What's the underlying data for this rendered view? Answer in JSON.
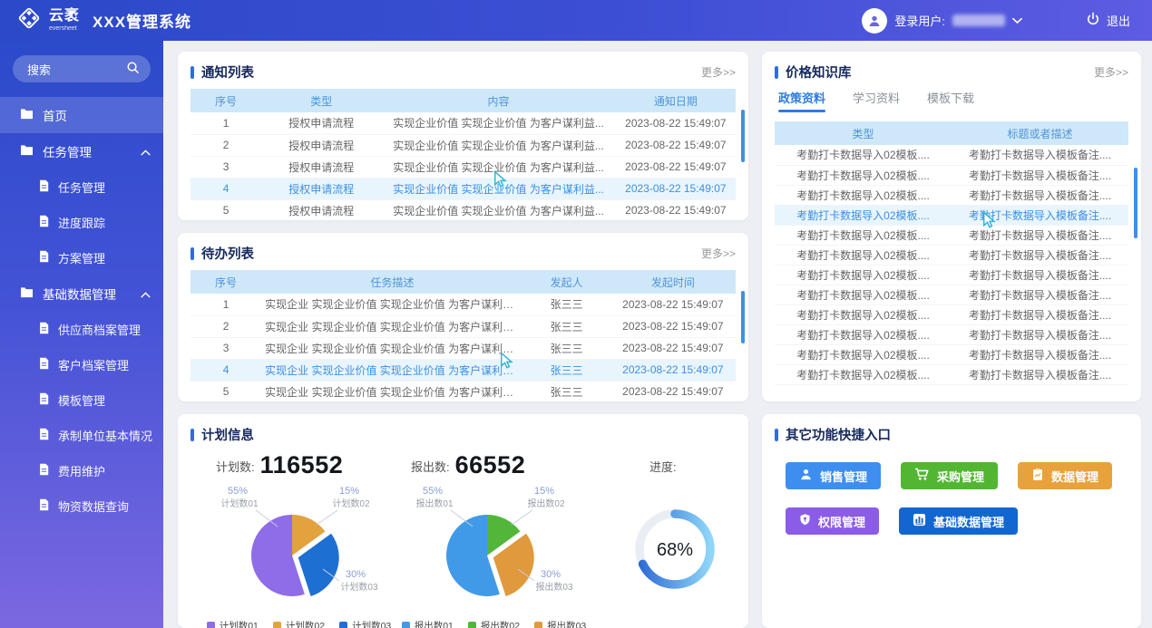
{
  "theme": {
    "accent": "#2e6ce6",
    "table_header_bg": "#cfe8f9",
    "table_header_text": "#4e95d9",
    "row_highlight_bg": "#e9f5fd",
    "row_highlight_text": "#3c8fe2"
  },
  "header": {
    "brand": {
      "name_cn": "云袤",
      "name_en": "eversheet"
    },
    "app_title": "XXX管理系统",
    "user": {
      "login_label": "登录用户:",
      "username_hidden": true
    },
    "logout_label": "退出"
  },
  "sidebar": {
    "search_placeholder": "搜索",
    "menu": [
      {
        "label": "首页",
        "icon": "folder-icon",
        "active": true,
        "expanded": false,
        "children": []
      },
      {
        "label": "任务管理",
        "icon": "folder-icon",
        "active": false,
        "expanded": true,
        "children": [
          {
            "label": "任务管理"
          },
          {
            "label": "进度跟踪"
          },
          {
            "label": "方案管理"
          }
        ]
      },
      {
        "label": "基础数据管理",
        "icon": "folder-icon",
        "active": false,
        "expanded": true,
        "children": [
          {
            "label": "供应商档案管理"
          },
          {
            "label": "客户档案管理"
          },
          {
            "label": "模板管理"
          },
          {
            "label": "承制单位基本情况"
          },
          {
            "label": "费用维护"
          },
          {
            "label": "物资数据查询"
          }
        ]
      }
    ]
  },
  "notice_panel": {
    "title": "通知列表",
    "more_label": "更多>>",
    "columns": [
      "序号",
      "类型",
      "内容",
      "通知日期"
    ],
    "rows": [
      [
        "1",
        "授权申请流程",
        "实现企业价值 实现企业价值 为客户谋利益...",
        "2023-08-22 15:49:07"
      ],
      [
        "2",
        "授权申请流程",
        "实现企业价值 实现企业价值 为客户谋利益...",
        "2023-08-22 15:49:07"
      ],
      [
        "3",
        "授权申请流程",
        "实现企业价值 实现企业价值 为客户谋利益...",
        "2023-08-22 15:49:07"
      ],
      [
        "4",
        "授权申请流程",
        "实现企业价值 实现企业价值 为客户谋利益...",
        "2023-08-22 15:49:07"
      ],
      [
        "5",
        "授权申请流程",
        "实现企业价值 实现企业价值 为客户谋利益...",
        "2023-08-22 15:49:07"
      ]
    ],
    "highlighted_row": 3
  },
  "todo_panel": {
    "title": "待办列表",
    "more_label": "更多>>",
    "columns": [
      "序号",
      "任务描述",
      "发起人",
      "发起时间"
    ],
    "rows": [
      [
        "1",
        "实现企业 实现企业价值 实现企业价值 为客户谋利益...",
        "张三三",
        "2023-08-22 15:49:07"
      ],
      [
        "2",
        "实现企业 实现企业价值 实现企业价值 为客户谋利益...",
        "张三三",
        "2023-08-22 15:49:07"
      ],
      [
        "3",
        "实现企业 实现企业价值 实现企业价值 为客户谋利益...",
        "张三三",
        "2023-08-22 15:49:07"
      ],
      [
        "4",
        "实现企业 实现企业价值 实现企业价值 为客户谋利益...",
        "张三三",
        "2023-08-22 15:49:07"
      ],
      [
        "5",
        "实现企业 实现企业价值 实现企业价值 为客户谋利益...",
        "张三三",
        "2023-08-22 15:49:07"
      ]
    ],
    "highlighted_row": 3
  },
  "knowledge_panel": {
    "title": "价格知识库",
    "more_label": "更多>>",
    "tabs": [
      "政策资料",
      "学习资料",
      "模板下载"
    ],
    "active_tab": 0,
    "columns": [
      "类型",
      "标题或者描述"
    ],
    "rows": [
      [
        "考勤打卡数据导入02模板....",
        "考勤打卡数据导入模板备注...."
      ],
      [
        "考勤打卡数据导入02模板....",
        "考勤打卡数据导入模板备注...."
      ],
      [
        "考勤打卡数据导入02模板....",
        "考勤打卡数据导入模板备注...."
      ],
      [
        "考勤打卡数据导入02模板....",
        "考勤打卡数据导入模板备注...."
      ],
      [
        "考勤打卡数据导入02模板....",
        "考勤打卡数据导入模板备注...."
      ],
      [
        "考勤打卡数据导入02模板....",
        "考勤打卡数据导入模板备注...."
      ],
      [
        "考勤打卡数据导入02模板....",
        "考勤打卡数据导入模板备注...."
      ],
      [
        "考勤打卡数据导入02模板....",
        "考勤打卡数据导入模板备注...."
      ],
      [
        "考勤打卡数据导入02模板....",
        "考勤打卡数据导入模板备注...."
      ],
      [
        "考勤打卡数据导入02模板....",
        "考勤打卡数据导入模板备注...."
      ],
      [
        "考勤打卡数据导入02模板....",
        "考勤打卡数据导入模板备注...."
      ],
      [
        "考勤打卡数据导入02模板....",
        "考勤打卡数据导入模板备注...."
      ]
    ],
    "highlighted_row": 3
  },
  "plan_panel": {
    "title": "计划信息",
    "stats": [
      {
        "label": "计划数:",
        "value": "116552"
      },
      {
        "label": "报出数:",
        "value": "66552"
      },
      {
        "label": "进度:",
        "value": ""
      }
    ]
  },
  "shortcut_panel": {
    "title": "其它功能快捷入口",
    "buttons": [
      {
        "label": "销售管理",
        "color": "#3e8ef0",
        "icon": "person-icon"
      },
      {
        "label": "采购管理",
        "color": "#52b632",
        "icon": "cart-icon"
      },
      {
        "label": "数据管理",
        "color": "#e8a23c",
        "icon": "clipboard-chart-icon"
      },
      {
        "label": "权限管理",
        "color": "#8a5ce8",
        "icon": "shield-key-icon"
      },
      {
        "label": "基础数据管理",
        "color": "#1266d2",
        "icon": "bar-chart-icon"
      }
    ]
  },
  "chart_data": [
    {
      "type": "pie",
      "title": "计划数",
      "stat_value": 116552,
      "slices": [
        {
          "label": "计划数01",
          "value_pct": 55,
          "color": "#8f6ce8",
          "callout": "top-left",
          "exploded": false
        },
        {
          "label": "计划数02",
          "value_pct": 15,
          "color": "#e2a23e",
          "callout": "top-right",
          "exploded": false
        },
        {
          "label": "计划数03",
          "value_pct": 30,
          "color": "#1e6fd2",
          "callout": "bottom-right",
          "exploded": true
        }
      ],
      "clockwise_from_top": [
        1,
        2,
        0
      ],
      "legend_position": "bottom"
    },
    {
      "type": "pie",
      "title": "报出数",
      "stat_value": 66552,
      "slices": [
        {
          "label": "报出数01",
          "value_pct": 55,
          "color": "#419ae8",
          "callout": "top-left",
          "exploded": false
        },
        {
          "label": "报出数02",
          "value_pct": 15,
          "color": "#52b63b",
          "callout": "top-right",
          "exploded": false
        },
        {
          "label": "报出数03",
          "value_pct": 30,
          "color": "#e0993d",
          "callout": "bottom-right",
          "exploded": true
        }
      ],
      "clockwise_from_top": [
        1,
        2,
        0
      ],
      "legend_position": "bottom"
    },
    {
      "type": "donut",
      "title": "进度",
      "value": 68,
      "unit": "%",
      "ring_track_color": "#e9eef4",
      "ring_colors": [
        "#2e6bd4",
        "#8fd6f8"
      ]
    }
  ]
}
